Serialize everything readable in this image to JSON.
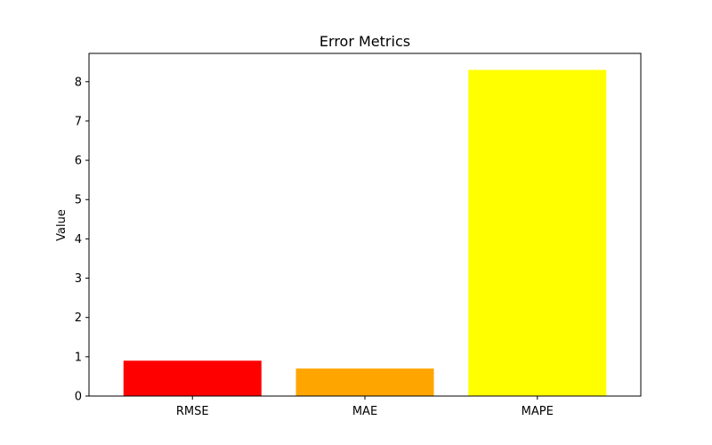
{
  "chart_data": {
    "type": "bar",
    "title": "Error Metrics",
    "xlabel": "",
    "ylabel": "Value",
    "categories": [
      "RMSE",
      "MAE",
      "MAPE"
    ],
    "values": [
      0.9,
      0.7,
      8.3
    ],
    "colors": [
      "#ff0000",
      "#ffa500",
      "#ffff00"
    ],
    "ylim": [
      0,
      8.72
    ],
    "yticks": [
      0,
      1,
      2,
      3,
      4,
      5,
      6,
      7,
      8
    ],
    "grid": false,
    "legend": "none"
  }
}
